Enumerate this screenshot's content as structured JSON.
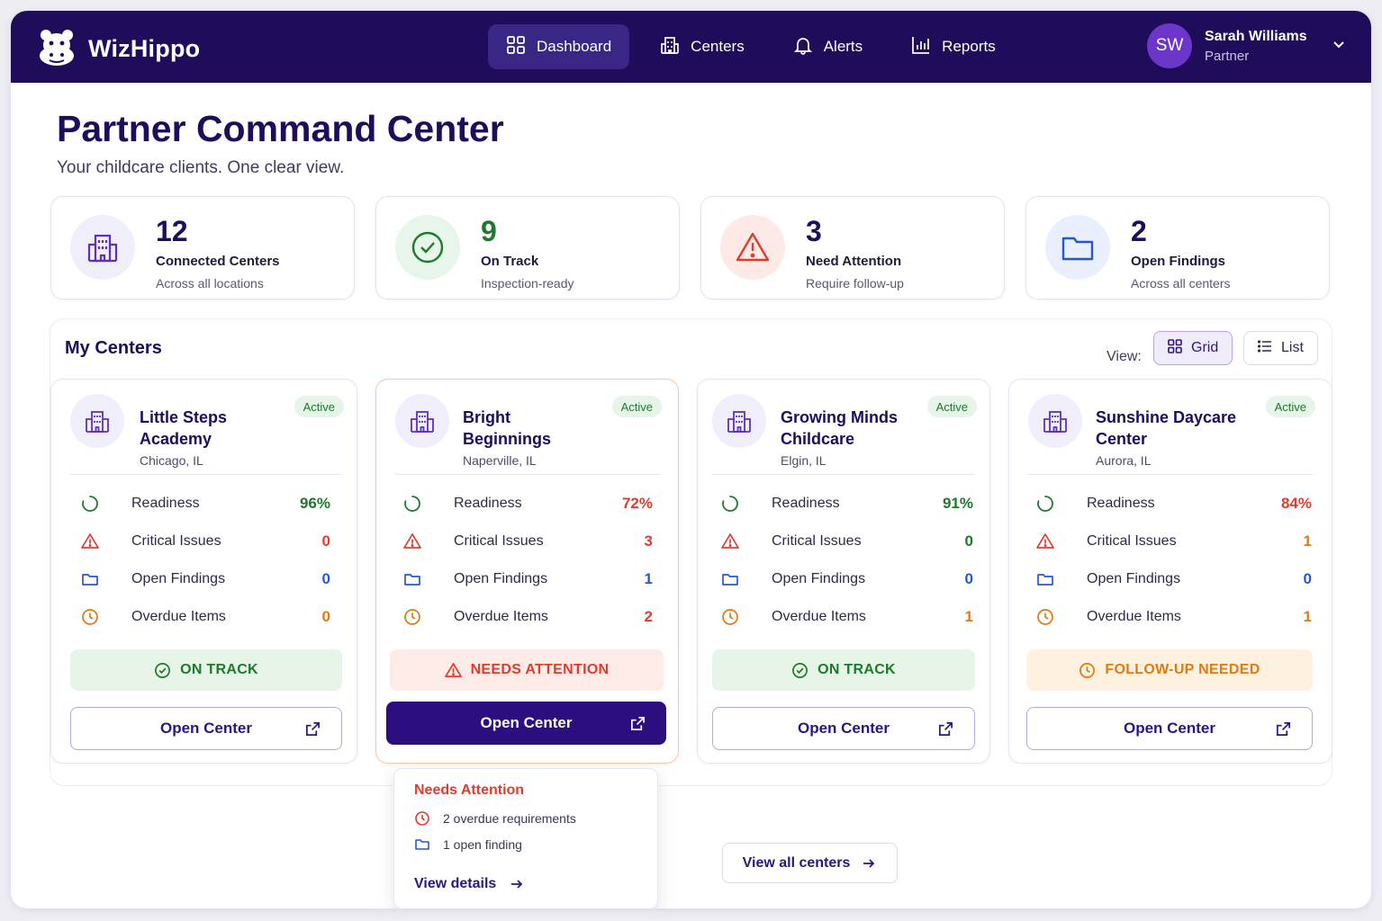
{
  "app": {
    "name": "WizHippo"
  },
  "nav": {
    "items": [
      {
        "label": "Dashboard",
        "icon": "dashboard-grid-icon",
        "active": true
      },
      {
        "label": "Centers",
        "icon": "building-icon",
        "active": false
      },
      {
        "label": "Alerts",
        "icon": "bell-icon",
        "active": false
      },
      {
        "label": "Reports",
        "icon": "bar-chart-icon",
        "active": false
      }
    ]
  },
  "user": {
    "initials": "SW",
    "name": "Sarah Williams",
    "role": "Partner"
  },
  "page": {
    "title": "Partner Command Center",
    "subtitle": "Your childcare clients. One clear view."
  },
  "stats": [
    {
      "value": "12",
      "label": "Connected Centers",
      "sub": "Across all locations",
      "icon": "building-icon",
      "color": "#5b2fbf"
    },
    {
      "value": "9",
      "label": "On Track",
      "sub": "Inspection-ready",
      "icon": "check-circle-icon",
      "color": "#1d7a2a"
    },
    {
      "value": "3",
      "label": "Need Attention",
      "sub": "Require follow-up",
      "icon": "warning-icon",
      "color": "#e23b2e"
    },
    {
      "value": "2",
      "label": "Open Findings",
      "sub": "Across all centers",
      "icon": "folder-icon",
      "color": "#2457d6"
    }
  ],
  "centers_section": {
    "title": "My Centers",
    "view_label": "View:",
    "grid_label": "Grid",
    "list_label": "List",
    "view_all": "View all centers"
  },
  "metric_labels": {
    "readiness": "Readiness",
    "critical": "Critical Issues",
    "findings": "Open Findings",
    "overdue": "Overdue Items"
  },
  "open_center_label": "Open Center",
  "centers": [
    {
      "name": "Little Steps Academy",
      "location": "Chicago, IL",
      "badge": "Active",
      "readiness": "96%",
      "readiness_color": "#1d7a2a",
      "critical": "0",
      "findings": "0",
      "overdue": "0",
      "status": "ON TRACK",
      "status_type": "ok"
    },
    {
      "name": "Bright Beginnings",
      "location": "Naperville, IL",
      "badge": "Active",
      "readiness": "72%",
      "readiness_color": "#e23b2e",
      "critical": "3",
      "findings": "1",
      "overdue": "2",
      "status": "NEEDS ATTENTION",
      "status_type": "alert"
    },
    {
      "name": "Growing Minds Childcare",
      "location": "Elgin, IL",
      "badge": "Active",
      "readiness": "91%",
      "readiness_color": "#1d7a2a",
      "critical": "0",
      "findings": "0",
      "overdue": "1",
      "status": "ON TRACK",
      "status_type": "ok"
    },
    {
      "name": "Sunshine Daycare Center",
      "location": "Aurora, IL",
      "badge": "Active",
      "readiness": "84%",
      "readiness_color": "#e23b2e",
      "critical": "1",
      "findings": "0",
      "overdue": "1",
      "status": "FOLLOW-UP NEEDED",
      "status_type": "warn"
    }
  ],
  "popover": {
    "title": "Needs Attention",
    "line1": "2 overdue requirements",
    "line2": "1 open finding",
    "link": "View details"
  },
  "colors": {
    "brand": "#1f0d5c",
    "accent": "#2d0e80",
    "ok": "#1d7a2a",
    "alert": "#e23b2e",
    "warn": "#e07a12",
    "info": "#2457d6"
  }
}
